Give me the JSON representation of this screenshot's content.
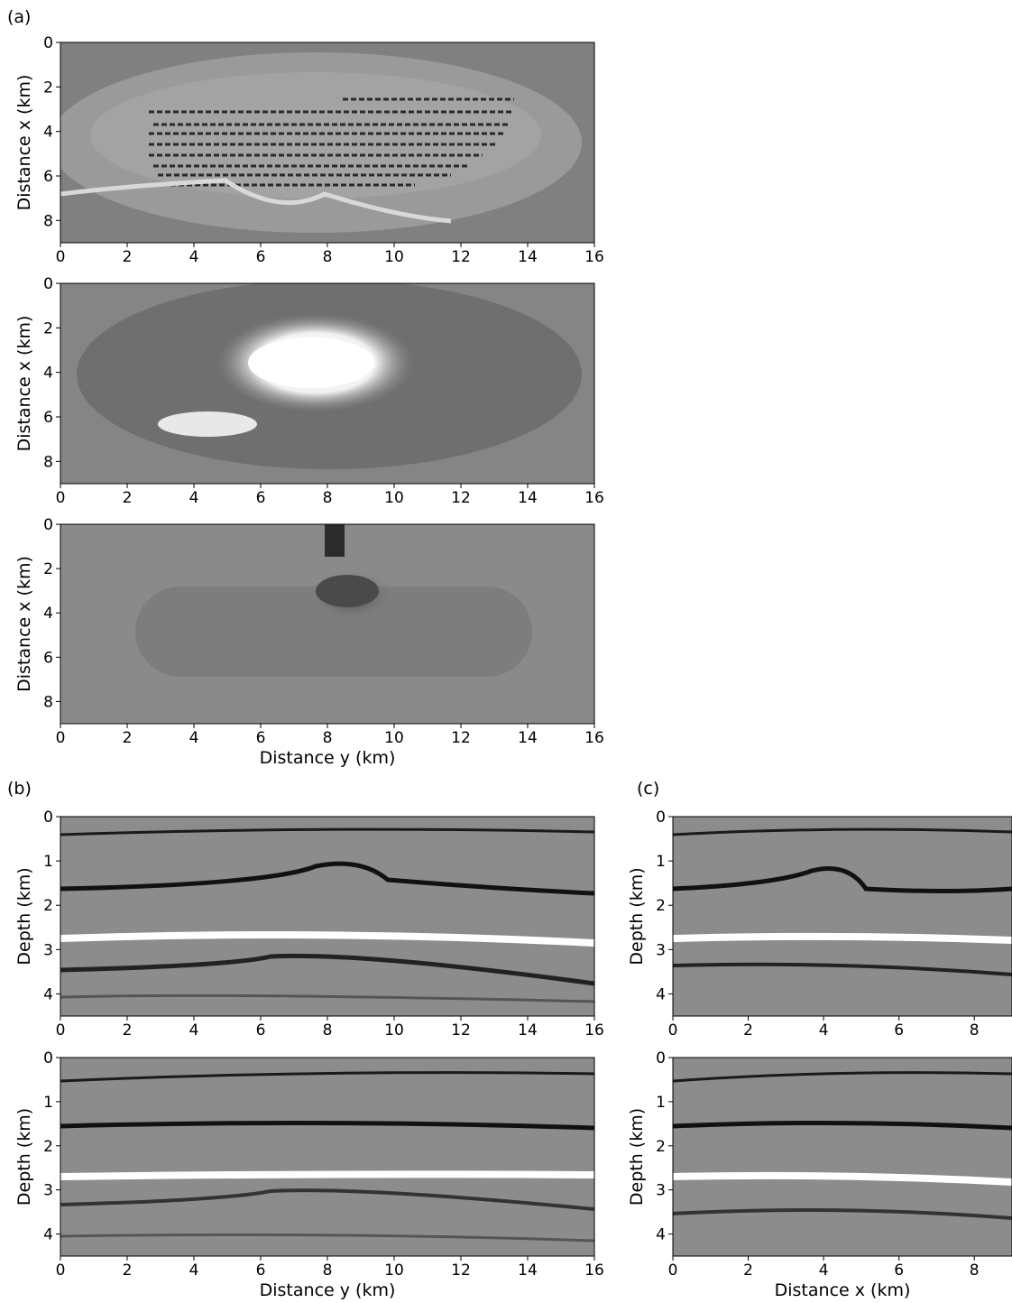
{
  "figure": {
    "panel_labels": [
      "(a)",
      "(b)",
      "(c)"
    ]
  },
  "chart_data": [
    {
      "type": "heatmap",
      "panel": "(a)",
      "index": 1,
      "xlabel": "",
      "ylabel": "Distance x (km)",
      "xlim": [
        0,
        16
      ],
      "ylim": [
        9,
        0
      ],
      "xticks": [
        0,
        2,
        4,
        6,
        8,
        10,
        12,
        14,
        16
      ],
      "yticks": [
        0,
        2,
        4,
        6,
        8
      ],
      "colormap": "grayscale",
      "content": "map-view slice with striped acquisition pattern"
    },
    {
      "type": "heatmap",
      "panel": "(a)",
      "index": 2,
      "xlabel": "",
      "ylabel": "Distance x (km)",
      "xlim": [
        0,
        16
      ],
      "ylim": [
        9,
        0
      ],
      "xticks": [
        0,
        2,
        4,
        6,
        8,
        10,
        12,
        14,
        16
      ],
      "yticks": [
        0,
        2,
        4,
        6,
        8
      ],
      "colormap": "grayscale",
      "content": "map-view slice with bright anomaly near y=7.5 km, x=3.5 km"
    },
    {
      "type": "heatmap",
      "panel": "(a)",
      "index": 3,
      "xlabel": "Distance y (km)",
      "ylabel": "Distance x (km)",
      "xlim": [
        0,
        16
      ],
      "ylim": [
        9,
        0
      ],
      "xticks": [
        0,
        2,
        4,
        6,
        8,
        10,
        12,
        14,
        16
      ],
      "yticks": [
        0,
        2,
        4,
        6,
        8
      ],
      "colormap": "grayscale",
      "content": "map-view slice with dark anomaly near y=9 km, x=3 km"
    },
    {
      "type": "heatmap",
      "panel": "(b)",
      "index": 1,
      "xlabel": "",
      "ylabel": "Depth (km)",
      "xlim": [
        0,
        16
      ],
      "ylim": [
        4.5,
        0
      ],
      "xticks": [
        0,
        2,
        4,
        6,
        8,
        10,
        12,
        14,
        16
      ],
      "yticks": [
        0,
        1,
        2,
        3,
        4
      ],
      "colormap": "grayscale",
      "content": "seismic depth section"
    },
    {
      "type": "heatmap",
      "panel": "(b)",
      "index": 2,
      "xlabel": "Distance y (km)",
      "ylabel": "Depth (km)",
      "xlim": [
        0,
        16
      ],
      "ylim": [
        4.5,
        0
      ],
      "xticks": [
        0,
        2,
        4,
        6,
        8,
        10,
        12,
        14,
        16
      ],
      "yticks": [
        0,
        1,
        2,
        3,
        4
      ],
      "colormap": "grayscale",
      "content": "seismic depth section"
    },
    {
      "type": "heatmap",
      "panel": "(c)",
      "index": 1,
      "xlabel": "",
      "ylabel": "Depth (km)",
      "xlim": [
        0,
        9
      ],
      "ylim": [
        4.5,
        0
      ],
      "xticks": [
        0,
        2,
        4,
        6,
        8
      ],
      "yticks": [
        0,
        1,
        2,
        3,
        4
      ],
      "colormap": "grayscale",
      "content": "seismic depth section"
    },
    {
      "type": "heatmap",
      "panel": "(c)",
      "index": 2,
      "xlabel": "Distance x (km)",
      "ylabel": "Depth (km)",
      "xlim": [
        0,
        9
      ],
      "ylim": [
        4.5,
        0
      ],
      "xticks": [
        0,
        2,
        4,
        6,
        8
      ],
      "yticks": [
        0,
        1,
        2,
        3,
        4
      ],
      "colormap": "grayscale",
      "content": "seismic depth section"
    }
  ]
}
